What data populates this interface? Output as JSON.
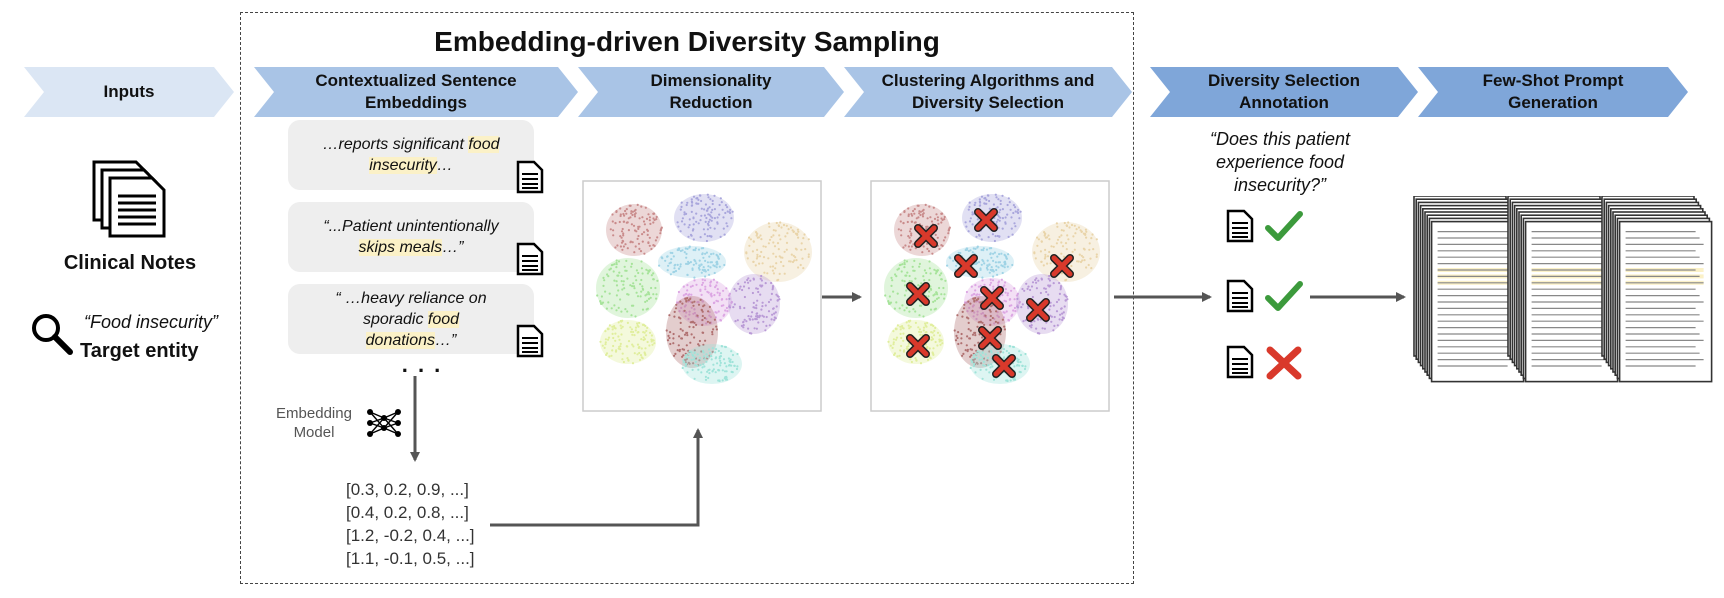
{
  "title": "Embedding-driven Diversity Sampling",
  "stages": [
    {
      "id": "inputs",
      "label": "Inputs"
    },
    {
      "id": "embeddings",
      "label": "Contextualized Sentence Embeddings"
    },
    {
      "id": "dimred",
      "label": "Dimensionality Reduction"
    },
    {
      "id": "clustering",
      "label": "Clustering Algorithms and Diversity Selection"
    },
    {
      "id": "annotation",
      "label": "Diversity Selection Annotation"
    },
    {
      "id": "fewshot",
      "label": "Few-Shot Prompt Generation"
    }
  ],
  "inputs": {
    "notes_label": "Clinical Notes",
    "query": "“Food insecurity”",
    "target_label": "Target entity"
  },
  "snippets": [
    {
      "before": "…reports significant ",
      "highlight": "food insecurity",
      "after": "…"
    },
    {
      "before": "“...Patient unintentionally ",
      "highlight": "skips meals",
      "after": "…”"
    },
    {
      "before": "“ …heavy reliance on sporadic ",
      "highlight": "food donations",
      "after": "…”"
    }
  ],
  "ellipsis": ". . .",
  "embedding_model_label": "Embedding Model",
  "vectors": [
    "[0.3, 0.2, 0.9, ...]",
    "[0.4, 0.2, 0.8, ...]",
    "[1.2, -0.2, 0.4, ...]",
    "[1.1, -0.1, 0.5, ...]"
  ],
  "question": "“Does this patient experience food insecurity?”",
  "annotations": [
    {
      "result": "check-icon"
    },
    {
      "result": "check-icon"
    },
    {
      "result": "cross-icon"
    }
  ],
  "colors": {
    "chevron_light": "#dbe6f4",
    "chevron_mid": "#a9c4e6",
    "chevron_dark": "#7fa6d9",
    "highlight": "#fbf1c7",
    "check": "#3c9a3c",
    "cross": "#d9392b"
  },
  "clusters": [
    {
      "color": "#c98b8b"
    },
    {
      "color": "#a9a6dc"
    },
    {
      "color": "#e9d4a9"
    },
    {
      "color": "#9fd3e5"
    },
    {
      "color": "#a6e39a"
    },
    {
      "color": "#dca6e3"
    },
    {
      "color": "#b99ad6"
    },
    {
      "color": "#e0ee9c"
    },
    {
      "color": "#b07070"
    },
    {
      "color": "#9fe3d9"
    }
  ]
}
